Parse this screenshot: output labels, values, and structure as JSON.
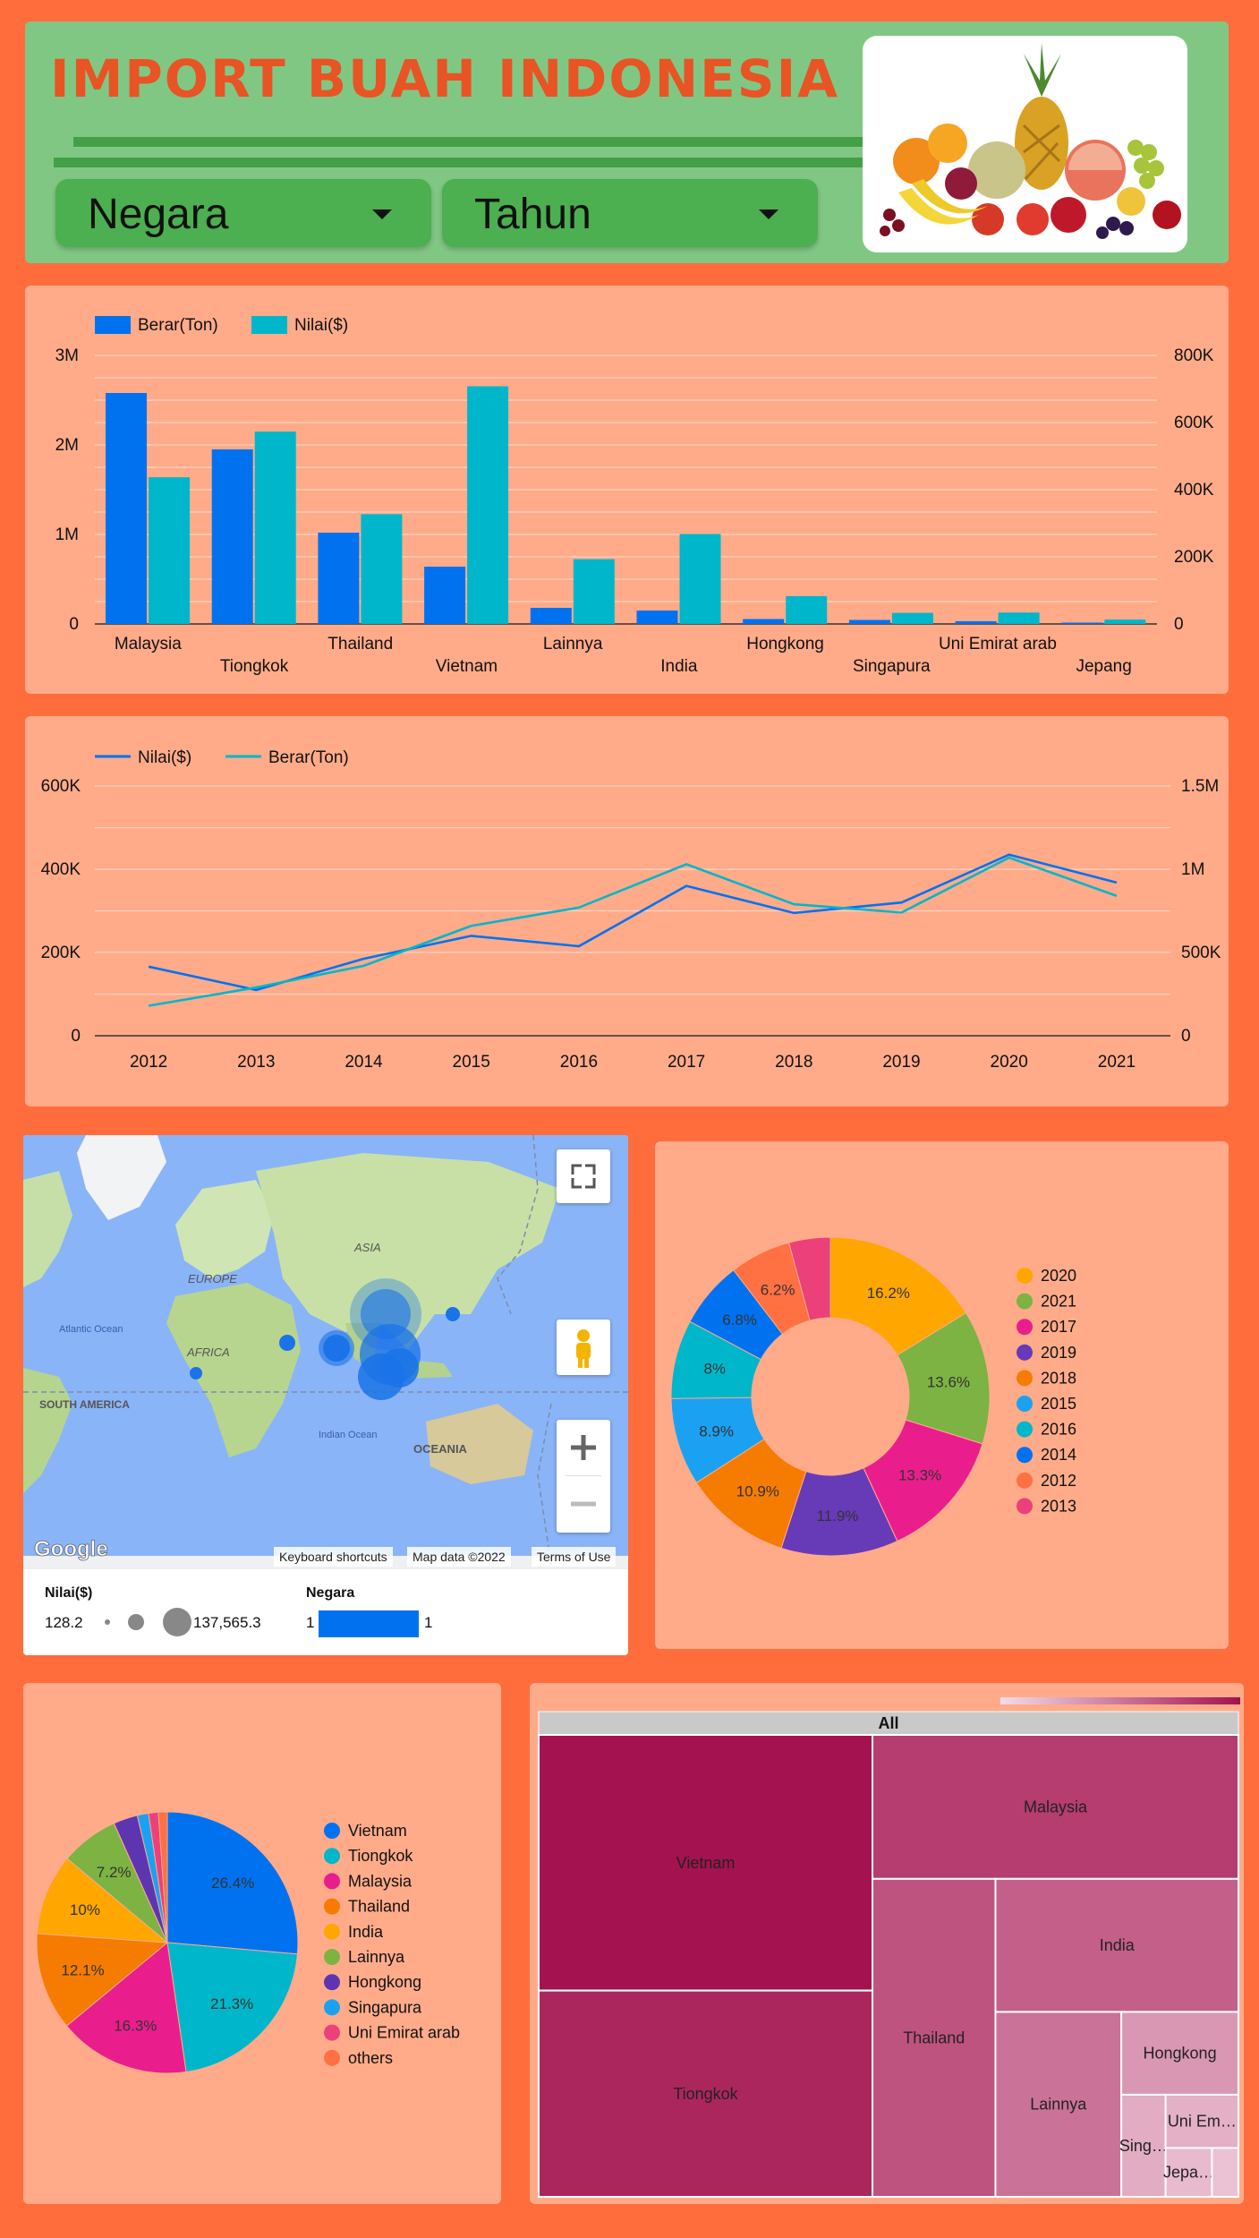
{
  "header": {
    "title": "IMPORT BUAH INDONESIA",
    "filters": [
      {
        "label": "Negara"
      },
      {
        "label": "Tahun"
      }
    ],
    "image": "fruit-basket-image"
  },
  "colors": {
    "primary": "#0072f0",
    "secondary": "#00b6cb",
    "background": "#ff6d3d",
    "panel": "#ffab8a",
    "header": "#81c784",
    "title": "#e85424"
  },
  "bar_legend": [
    "Berar(Ton)",
    "Nilai($)"
  ],
  "line_legend": [
    "Nilai($)",
    "Berar(Ton)"
  ],
  "chart_data": [
    {
      "type": "bar",
      "categories": [
        "Malaysia",
        "Tiongkok",
        "Thailand",
        "Vietnam",
        "Lainnya",
        "India",
        "Hongkong",
        "Singapura",
        "Uni Emirat arab",
        "Jepang"
      ],
      "series": [
        {
          "name": "Berar(Ton)",
          "axis": "left",
          "values": [
            2580000,
            1950000,
            1020000,
            640000,
            180000,
            150000,
            55000,
            45000,
            30000,
            15000
          ]
        },
        {
          "name": "Nilai($)",
          "axis": "right",
          "values": [
            437000,
            573000,
            327000,
            708000,
            193000,
            268000,
            83000,
            33000,
            34000,
            13000
          ]
        }
      ],
      "left_ticks": [
        "0",
        "1M",
        "2M",
        "3M"
      ],
      "right_ticks": [
        "0",
        "200K",
        "400K",
        "600K",
        "800K"
      ],
      "ylim_left": [
        0,
        3000000
      ],
      "ylim_right": [
        0,
        800000
      ],
      "legend": "top-left"
    },
    {
      "type": "line",
      "x": [
        "2012",
        "2013",
        "2014",
        "2015",
        "2016",
        "2017",
        "2018",
        "2019",
        "2020",
        "2021"
      ],
      "series": [
        {
          "name": "Nilai($)",
          "axis": "left",
          "values": [
            166000,
            110000,
            185000,
            240000,
            215000,
            360000,
            295000,
            320000,
            435000,
            368000
          ]
        },
        {
          "name": "Berar(Ton)",
          "axis": "right",
          "values": [
            180000,
            290000,
            420000,
            660000,
            770000,
            1030000,
            790000,
            740000,
            1070000,
            840000
          ]
        }
      ],
      "left_ticks": [
        "0",
        "200K",
        "400K",
        "600K"
      ],
      "right_ticks": [
        "0",
        "500K",
        "1M",
        "1.5M"
      ],
      "ylim_left": [
        0,
        600000
      ],
      "ylim_right": [
        0,
        1500000
      ],
      "legend": "top-left"
    },
    {
      "type": "pie",
      "donut": true,
      "labels": [
        "2020",
        "2021",
        "2017",
        "2019",
        "2018",
        "2015",
        "2016",
        "2014",
        "2012",
        "2013"
      ],
      "values": [
        16.2,
        13.6,
        13.3,
        11.9,
        10.9,
        8.9,
        8.0,
        6.8,
        6.2,
        4.2
      ],
      "display_labels": [
        "16.2%",
        "13.6%",
        "13.3%",
        "11.9%",
        "10.9%",
        "8.9%",
        "8%",
        "6.8%",
        "6.2%",
        ""
      ],
      "colors": [
        "#ffa600",
        "#7cb342",
        "#e91e8c",
        "#673ab7",
        "#f57c00",
        "#1ba1f2",
        "#00b6cb",
        "#0072f0",
        "#ff7043",
        "#ec407a"
      ],
      "legend": "right"
    },
    {
      "type": "pie",
      "labels": [
        "Vietnam",
        "Tiongkok",
        "Malaysia",
        "Thailand",
        "India",
        "Lainnya",
        "Hongkong",
        "Singapura",
        "Uni Emirat arab",
        "others"
      ],
      "values": [
        26.4,
        21.3,
        16.3,
        12.1,
        10.0,
        7.2,
        3.0,
        1.4,
        1.2,
        1.1
      ],
      "display_labels": [
        "26.4%",
        "21.3%",
        "16.3%",
        "12.1%",
        "10%",
        "7.2%",
        "",
        "",
        "",
        ""
      ],
      "colors": [
        "#0072f0",
        "#00b6cb",
        "#e91e8c",
        "#f57c00",
        "#ffa600",
        "#7cb342",
        "#5e35b1",
        "#1ba1f2",
        "#ec407a",
        "#ff7043"
      ],
      "legend": "right"
    },
    {
      "type": "treemap",
      "root": "All",
      "labels": [
        "Vietnam",
        "Tiongkok",
        "Malaysia",
        "Thailand",
        "India",
        "Lainnya",
        "Hongkong",
        "Sing…",
        "Uni Em…",
        "Jepa…",
        ""
      ],
      "values": [
        26.4,
        21.3,
        16.3,
        12.1,
        10.0,
        7.2,
        3.0,
        1.4,
        1.2,
        0.7,
        0.4
      ]
    }
  ],
  "map": {
    "labels": {
      "europe": "EUROPE",
      "asia": "ASIA",
      "africa": "AFRICA",
      "south_america": "SOUTH AMERICA",
      "atlantic": "Atlantic Ocean",
      "indian": "Indian Ocean",
      "oceania": "OCEANIA"
    },
    "attribution": [
      "Keyboard shortcuts",
      "Map data ©2022",
      "Terms of Use"
    ],
    "google": "Google",
    "legend": {
      "size_title": "Nilai($)",
      "size_min": "128.2",
      "size_max": "137,565.3",
      "color_title": "Negara",
      "color_min": "1",
      "color_max": "1"
    }
  }
}
